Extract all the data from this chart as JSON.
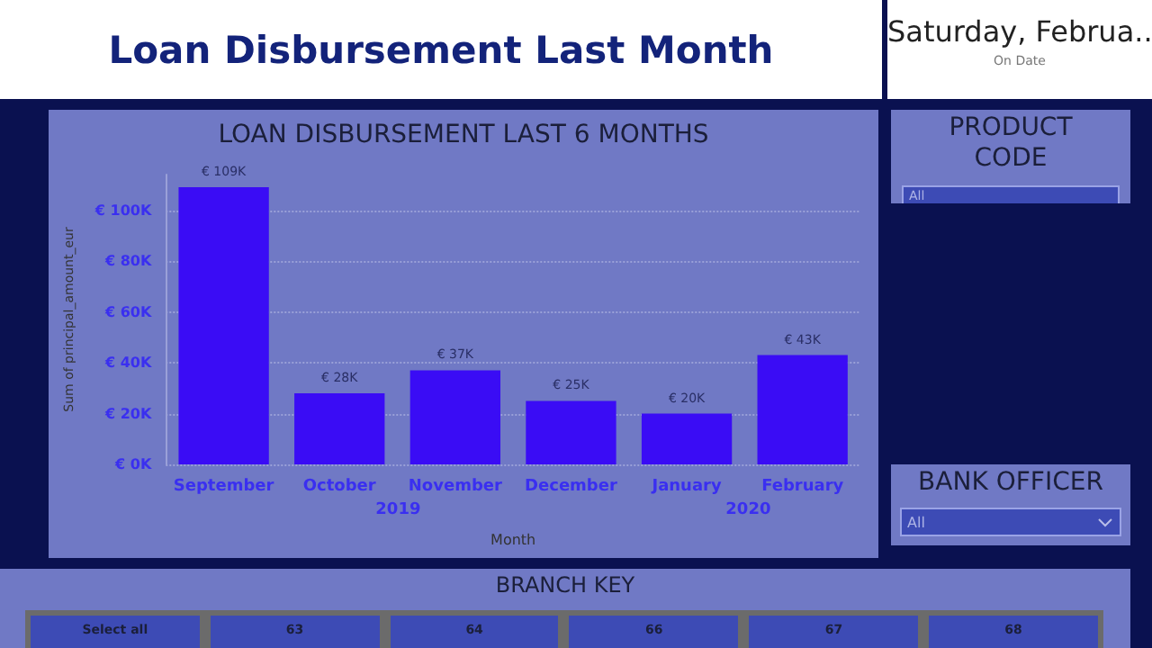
{
  "chart_data": [
    {
      "type": "bar",
      "title": "LOAN DISBURSEMENT LAST 6 MONTHS",
      "xlabel": "Month",
      "ylabel": "Sum of principal_amount_eur",
      "categories": [
        "September",
        "October",
        "November",
        "December",
        "January",
        "February"
      ],
      "values": [
        109000,
        28000,
        37000,
        25000,
        20000,
        43000
      ],
      "value_labels": [
        "€ 109K",
        "€ 28K",
        "€ 37K",
        "€ 25K",
        "€ 20K",
        "€ 43K"
      ],
      "color": "#3a0cf5",
      "ylim": [
        0,
        114000
      ],
      "yticks": [
        {
          "value": 0,
          "label": "€ 0K"
        },
        {
          "value": 20000,
          "label": "€ 20K"
        },
        {
          "value": 40000,
          "label": "€ 40K"
        },
        {
          "value": 60000,
          "label": "€ 60K"
        },
        {
          "value": 80000,
          "label": "€ 80K"
        },
        {
          "value": 100000,
          "label": "€ 100K"
        }
      ],
      "grid": "y",
      "annotations": [
        "2019",
        "2020"
      ]
    },
    {
      "type": "other",
      "title": "Loan Disbursement Last Month"
    },
    {
      "type": "other",
      "title": "Saturday, Februa...",
      "annotations": [
        "On Date"
      ]
    },
    {
      "type": "other",
      "title": "PRODUCT CODE",
      "annotations": [
        "All"
      ]
    },
    {
      "type": "other",
      "title": "BANK OFFICER",
      "annotations": [
        "All"
      ]
    },
    {
      "type": "other",
      "title": "BRANCH KEY",
      "annotations": [
        "Select all",
        "63",
        "64",
        "66",
        "67",
        "68"
      ]
    }
  ]
}
